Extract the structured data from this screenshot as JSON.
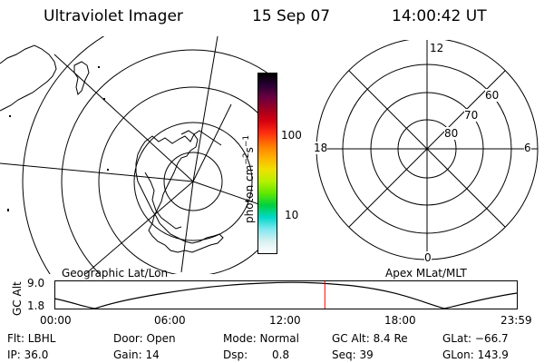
{
  "header": {
    "title": "Ultraviolet Imager",
    "date": "15 Sep 07",
    "time": "14:00:42 UT"
  },
  "left_panel": {
    "caption": "Geographic Lat/Lon"
  },
  "right_panel": {
    "caption": "Apex MLat/MLT",
    "mlt_labels": {
      "top": "12",
      "bottom": "0",
      "left": "18",
      "right": "6"
    },
    "lat_labels": [
      "60",
      "70",
      "80"
    ]
  },
  "colorbar": {
    "title_main": "photon cm",
    "title_exp1": "−2",
    "title_mid": "s",
    "title_exp2": "−1",
    "ticks": [
      "100",
      "10"
    ],
    "scale": "log",
    "colors": [
      "#000000",
      "#2a0035",
      "#6a0040",
      "#a00020",
      "#d80010",
      "#ff3010",
      "#ff7a00",
      "#ffb000",
      "#f0e000",
      "#b8f000",
      "#60e800",
      "#00d040",
      "#00d8c8",
      "#80e8f0",
      "#d8f0f0",
      "#ffffff"
    ]
  },
  "altitude_plot": {
    "ylabel": "GC Alt",
    "yticks": [
      "9.0",
      "1.8"
    ],
    "xticks": [
      "00:00",
      "06:00",
      "12:00",
      "18:00",
      "23:59"
    ],
    "marker_time_hours": 14.01,
    "marker_color": "#ff0000"
  },
  "info": {
    "filter": "Flt: LBHL",
    "ip": "IP: 36.0",
    "door": "Door: Open",
    "gain": "Gain: 14",
    "mode": "Mode: Normal",
    "dsp_label": "Dsp:",
    "dsp_value": "0.8",
    "gcalt": "GC Alt: 8.4 Re",
    "seq": "Seq: 39",
    "glat": "GLat: −66.7",
    "glon": "GLon: 143.9"
  }
}
